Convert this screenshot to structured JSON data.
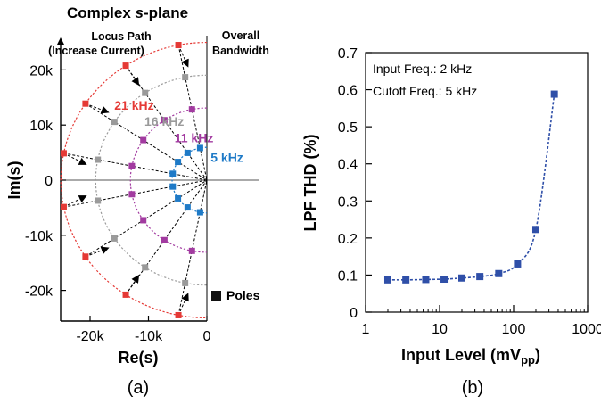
{
  "chart_data": [
    {
      "type": "scatter",
      "title_prefix": "Complex ",
      "title_var": "s",
      "title_suffix": "-plane",
      "xlabel": "Re(s)",
      "ylabel": "Im(s)",
      "xlim": [
        -25000,
        0
      ],
      "ylim": [
        -25000,
        25000
      ],
      "xticks": [
        {
          "v": -20000,
          "t": "-20k"
        },
        {
          "v": -10000,
          "t": "-10k"
        },
        {
          "v": 0,
          "t": "0"
        }
      ],
      "yticks": [
        {
          "v": 20000,
          "t": "20k"
        },
        {
          "v": 10000,
          "t": "10k"
        },
        {
          "v": 0,
          "t": "0"
        },
        {
          "v": -10000,
          "t": "-10k"
        },
        {
          "v": -20000,
          "t": "-20k"
        }
      ],
      "locus_label_1": "Locus Path",
      "locus_label_2": "(Increase Current)",
      "bandwidth_label_1": "Overall",
      "bandwidth_label_2": "Bandwidth",
      "legend_label": "Poles",
      "panel_label": "(a)",
      "radius_scale": 1.19,
      "pole_angles_deg": [
        11.25,
        33.75,
        56.25,
        78.75
      ],
      "arrow_angles_deg": [
        8,
        36,
        56,
        81
      ],
      "arrow_radius": 21.0,
      "series": [
        {
          "name": "21 kHz",
          "bandwidth_khz": 21,
          "color": "#e53935"
        },
        {
          "name": "16 kHz",
          "bandwidth_khz": 16,
          "color": "#9a9a9a"
        },
        {
          "name": "11 kHz",
          "bandwidth_khz": 11,
          "color": "#a23aa0"
        },
        {
          "name": "5 kHz",
          "bandwidth_khz": 5,
          "color": "#1e7ac7"
        }
      ]
    },
    {
      "type": "line",
      "xlabel_main": "Input Level (mV",
      "xlabel_sub": "pp",
      "xlabel_end": ")",
      "ylabel": "LPF THD (%)",
      "xscale": "log",
      "xlim": [
        1,
        1000
      ],
      "ylim": [
        0,
        0.7
      ],
      "xticks": [
        {
          "v": 1,
          "t": "1"
        },
        {
          "v": 10,
          "t": "10"
        },
        {
          "v": 100,
          "t": "100"
        },
        {
          "v": 1000,
          "t": "1000"
        }
      ],
      "yticks": [
        {
          "v": 0,
          "t": "0"
        },
        {
          "v": 0.1,
          "t": "0.1"
        },
        {
          "v": 0.2,
          "t": "0.2"
        },
        {
          "v": 0.3,
          "t": "0.3"
        },
        {
          "v": 0.4,
          "t": "0.4"
        },
        {
          "v": 0.5,
          "t": "0.5"
        },
        {
          "v": 0.6,
          "t": "0.6"
        },
        {
          "v": 0.7,
          "t": "0.7"
        }
      ],
      "annotation_1": "Input Freq.: 2 kHz",
      "annotation_2": "Cutoff Freq.: 5 kHz",
      "panel_label": "(b)",
      "color": "#2f4fa8",
      "series": [
        {
          "x": [
            2,
            3.5,
            6.5,
            11.5,
            20,
            35,
            63,
            113,
            200,
            355
          ],
          "y": [
            0.087,
            0.087,
            0.088,
            0.089,
            0.092,
            0.096,
            0.104,
            0.13,
            0.223,
            0.588
          ]
        }
      ]
    }
  ]
}
